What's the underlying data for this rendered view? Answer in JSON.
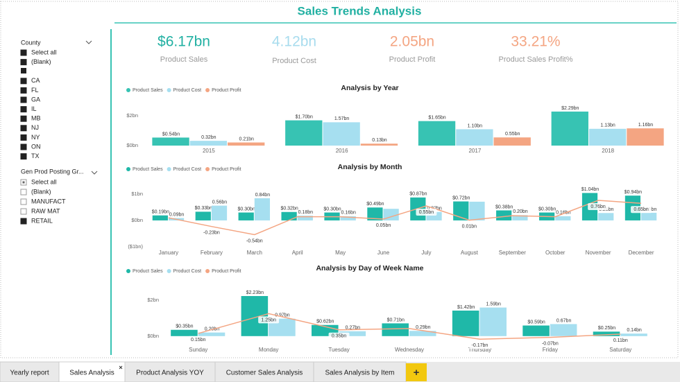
{
  "header": {
    "title": "Sales Trends Analysis"
  },
  "kpis": [
    {
      "value": "$6.17bn",
      "label": "Product Sales",
      "color": "#21b0a2"
    },
    {
      "value": "4.12bn",
      "label": "Product Cost",
      "color": "#a8dcee"
    },
    {
      "value": "2.05bn",
      "label": "Product Profit",
      "color": "#f4a582"
    },
    {
      "value": "33.21%",
      "label": "Product Sales Profit%",
      "color": "#f4a582"
    }
  ],
  "slicers": [
    {
      "title": "County",
      "items": [
        "Select all",
        "(Blank)",
        "CA",
        "FL",
        "GA",
        "IL",
        "MB",
        "NJ",
        "NY",
        "ON",
        "TX"
      ],
      "states": [
        "checked",
        "checked",
        "checked",
        "checked",
        "checked",
        "checked",
        "checked",
        "checked",
        "checked",
        "checked",
        "checked"
      ]
    },
    {
      "title": "Gen Prod Posting Gr...",
      "items": [
        "Select all",
        "(Blank)",
        "MANUFACT",
        "RAW MAT",
        "RETAIL"
      ],
      "states": [
        "partial",
        "empty",
        "empty",
        "empty",
        "checked"
      ]
    }
  ],
  "tabs": [
    "Yearly report",
    "Sales Analysis",
    "Product Analysis YOY",
    "Customer Sales Analysis",
    "Sales Analysis by Item"
  ],
  "add_tab": "+",
  "chart_data": [
    {
      "type": "bar",
      "title": "Analysis by Year",
      "categories": [
        "2015",
        "2016",
        "2017",
        "2018"
      ],
      "series": [
        {
          "name": "Product Sales",
          "color": "#37c3b3",
          "values": [
            0.54,
            1.7,
            1.65,
            2.29
          ],
          "value_labels": [
            "$0.54bn",
            "$1.70bn",
            "$1.65bn",
            "$2.29bn"
          ]
        },
        {
          "name": "Product Cost",
          "color": "#a6dff0",
          "values": [
            0.32,
            1.57,
            1.1,
            1.13
          ],
          "value_labels": [
            "0.32bn",
            "1.57bn",
            "1.10bn",
            "1.13bn"
          ]
        },
        {
          "name": "Product Profit",
          "color": "#f4a582",
          "values": [
            0.21,
            0.13,
            0.55,
            1.16
          ],
          "value_labels": [
            "0.21bn",
            "0.13bn",
            "0.55bn",
            "1.16bn"
          ]
        }
      ],
      "ylim": [
        0,
        2.8
      ],
      "yticks": [
        {
          "value": 0,
          "label": "$0bn"
        },
        {
          "value": 2,
          "label": "$2bn"
        }
      ]
    },
    {
      "type": "combo",
      "title": "Analysis by Month",
      "categories": [
        "January",
        "February",
        "March",
        "April",
        "May",
        "June",
        "July",
        "August",
        "September",
        "October",
        "November",
        "December"
      ],
      "series": [
        {
          "name": "Product Sales",
          "type": "bar",
          "color": "#1fb8a8",
          "values": [
            0.19,
            0.33,
            0.3,
            0.32,
            0.3,
            0.49,
            0.87,
            0.72,
            0.38,
            0.3,
            1.04,
            0.94
          ],
          "value_labels": [
            "$0.19bn",
            "$0.33bn",
            "$0.30bn",
            "$0.32bn",
            "$0.30bn",
            "$0.49bn",
            "$0.87bn",
            "$0.72bn",
            "$0.38bn",
            "$0.30bn",
            "$1.04bn",
            "$0.94bn"
          ]
        },
        {
          "name": "Product Cost",
          "type": "bar",
          "color": "#a6dff0",
          "values": [
            0.09,
            0.56,
            0.84,
            0.18,
            0.16,
            0.44,
            0.32,
            0.71,
            0.2,
            0.16,
            0.28,
            0.29
          ],
          "value_labels": [
            "0.09bn",
            "0.56bn",
            "0.84bn",
            "0.18bn",
            "0.16bn",
            null,
            "0.32bn",
            null,
            "0.20bn",
            "0.16bn",
            "0.28bn",
            "0.29bn"
          ]
        },
        {
          "name": "Product Profit",
          "type": "line",
          "color": "#f4a582",
          "values": [
            0.1,
            -0.23,
            -0.54,
            0.14,
            0.14,
            0.05,
            0.55,
            0.01,
            0.18,
            0.14,
            0.76,
            0.65
          ],
          "value_labels": [
            null,
            "-0.23bn",
            "-0.54bn",
            null,
            null,
            "0.05bn",
            "0.55bn",
            "0.01bn",
            null,
            null,
            "0.76bn",
            "0.65bn"
          ]
        }
      ],
      "ylim": [
        -1,
        1.26
      ],
      "yticks": [
        {
          "value": -1,
          "label": "($1bn)"
        },
        {
          "value": 0,
          "label": "$0bn"
        },
        {
          "value": 1,
          "label": "$1bn"
        }
      ]
    },
    {
      "type": "combo",
      "title": "Analysis by Day of Week Name",
      "categories": [
        "Sunday",
        "Monday",
        "Tuesday",
        "Wednesday",
        "Thursday",
        "Friday",
        "Saturday"
      ],
      "series": [
        {
          "name": "Product Sales",
          "type": "bar",
          "color": "#1fb8a8",
          "values": [
            0.35,
            2.23,
            0.62,
            0.71,
            1.42,
            0.59,
            0.25
          ],
          "value_labels": [
            "$0.35bn",
            "$2.23bn",
            "$0.62bn",
            "$0.71bn",
            "$1.42bn",
            "$0.59bn",
            "$0.25bn"
          ]
        },
        {
          "name": "Product Cost",
          "type": "bar",
          "color": "#a6dff0",
          "values": [
            0.2,
            0.97,
            0.27,
            0.29,
            1.59,
            0.67,
            0.14
          ],
          "value_labels": [
            "0.20bn",
            "0.97bn",
            "0.27bn",
            "0.29bn",
            "1.59bn",
            "0.67bn",
            "0.14bn"
          ]
        },
        {
          "name": "Product Profit",
          "type": "line",
          "color": "#f4a582",
          "values": [
            0.15,
            1.25,
            0.35,
            0.42,
            -0.17,
            -0.07,
            0.11
          ],
          "value_labels": [
            "0.15bn",
            "1.25bn",
            "0.35bn",
            null,
            "-0.17bn",
            "-0.07bn",
            "0.11bn"
          ]
        }
      ],
      "ylim": [
        -0.2,
        2.5
      ],
      "yticks": [
        {
          "value": 0,
          "label": "$0bn"
        },
        {
          "value": 2,
          "label": "$2bn"
        }
      ]
    }
  ]
}
